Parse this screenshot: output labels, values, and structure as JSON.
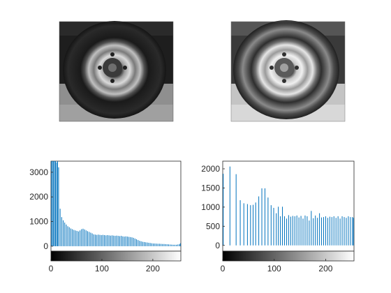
{
  "panels": {
    "original_image": {
      "caption": ""
    },
    "equalized_image": {
      "caption": ""
    }
  },
  "colors": {
    "bar": "#0072BD",
    "axes": "#262626",
    "background": "#FFFFFF"
  },
  "chart_data": [
    {
      "type": "bar",
      "name": "",
      "title": "",
      "xlabel": "",
      "ylabel": "",
      "xlim": [
        0,
        255
      ],
      "ylim": [
        -200,
        3450
      ],
      "xticks": [
        0,
        100,
        200
      ],
      "yticks": [
        0,
        1000,
        2000,
        3000
      ],
      "colorbar": "gray 0-255",
      "grid": false,
      "bars": [
        {
          "x": 1,
          "y": 3450
        },
        {
          "x": 3,
          "y": 3450
        },
        {
          "x": 5,
          "y": 3450
        },
        {
          "x": 7,
          "y": 3450
        },
        {
          "x": 9,
          "y": 3450
        },
        {
          "x": 11,
          "y": 3400
        },
        {
          "x": 13,
          "y": 3450
        },
        {
          "x": 15,
          "y": 3200
        },
        {
          "x": 18,
          "y": 1520
        },
        {
          "x": 21,
          "y": 1180
        },
        {
          "x": 24,
          "y": 1050
        },
        {
          "x": 27,
          "y": 960
        },
        {
          "x": 30,
          "y": 880
        },
        {
          "x": 33,
          "y": 810
        },
        {
          "x": 36,
          "y": 770
        },
        {
          "x": 39,
          "y": 720
        },
        {
          "x": 42,
          "y": 690
        },
        {
          "x": 45,
          "y": 660
        },
        {
          "x": 48,
          "y": 640
        },
        {
          "x": 51,
          "y": 620
        },
        {
          "x": 54,
          "y": 600
        },
        {
          "x": 57,
          "y": 640
        },
        {
          "x": 60,
          "y": 690
        },
        {
          "x": 63,
          "y": 710
        },
        {
          "x": 66,
          "y": 680
        },
        {
          "x": 69,
          "y": 640
        },
        {
          "x": 72,
          "y": 610
        },
        {
          "x": 75,
          "y": 580
        },
        {
          "x": 78,
          "y": 550
        },
        {
          "x": 81,
          "y": 520
        },
        {
          "x": 84,
          "y": 480
        },
        {
          "x": 87,
          "y": 470
        },
        {
          "x": 90,
          "y": 460
        },
        {
          "x": 93,
          "y": 470
        },
        {
          "x": 96,
          "y": 460
        },
        {
          "x": 99,
          "y": 450
        },
        {
          "x": 102,
          "y": 460
        },
        {
          "x": 105,
          "y": 450
        },
        {
          "x": 108,
          "y": 440
        },
        {
          "x": 111,
          "y": 450
        },
        {
          "x": 114,
          "y": 440
        },
        {
          "x": 117,
          "y": 430
        },
        {
          "x": 120,
          "y": 440
        },
        {
          "x": 123,
          "y": 430
        },
        {
          "x": 126,
          "y": 420
        },
        {
          "x": 129,
          "y": 430
        },
        {
          "x": 132,
          "y": 420
        },
        {
          "x": 135,
          "y": 410
        },
        {
          "x": 138,
          "y": 420
        },
        {
          "x": 141,
          "y": 400
        },
        {
          "x": 144,
          "y": 390
        },
        {
          "x": 147,
          "y": 400
        },
        {
          "x": 150,
          "y": 390
        },
        {
          "x": 153,
          "y": 380
        },
        {
          "x": 156,
          "y": 370
        },
        {
          "x": 159,
          "y": 360
        },
        {
          "x": 162,
          "y": 340
        },
        {
          "x": 165,
          "y": 310
        },
        {
          "x": 168,
          "y": 280
        },
        {
          "x": 171,
          "y": 250
        },
        {
          "x": 174,
          "y": 220
        },
        {
          "x": 177,
          "y": 200
        },
        {
          "x": 180,
          "y": 180
        },
        {
          "x": 183,
          "y": 170
        },
        {
          "x": 186,
          "y": 160
        },
        {
          "x": 189,
          "y": 150
        },
        {
          "x": 192,
          "y": 140
        },
        {
          "x": 195,
          "y": 130
        },
        {
          "x": 198,
          "y": 120
        },
        {
          "x": 201,
          "y": 110
        },
        {
          "x": 204,
          "y": 110
        },
        {
          "x": 207,
          "y": 105
        },
        {
          "x": 210,
          "y": 100
        },
        {
          "x": 213,
          "y": 100
        },
        {
          "x": 216,
          "y": 95
        },
        {
          "x": 219,
          "y": 90
        },
        {
          "x": 222,
          "y": 90
        },
        {
          "x": 225,
          "y": 85
        },
        {
          "x": 228,
          "y": 80
        },
        {
          "x": 231,
          "y": 75
        },
        {
          "x": 234,
          "y": 70
        },
        {
          "x": 237,
          "y": 65
        },
        {
          "x": 240,
          "y": 60
        },
        {
          "x": 243,
          "y": 60
        },
        {
          "x": 246,
          "y": 60
        },
        {
          "x": 249,
          "y": 70
        },
        {
          "x": 252,
          "y": 80
        },
        {
          "x": 254,
          "y": 120
        }
      ]
    },
    {
      "type": "bar",
      "name": "",
      "title": "",
      "xlabel": "",
      "ylabel": "",
      "xlim": [
        0,
        255
      ],
      "ylim": [
        -150,
        2200
      ],
      "xticks": [
        0,
        100,
        200
      ],
      "yticks": [
        0,
        500,
        1000,
        1500,
        2000
      ],
      "colorbar": "gray 0-255",
      "grid": false,
      "bars": [
        {
          "x": 1,
          "y": 1870
        },
        {
          "x": 14,
          "y": 2060
        },
        {
          "x": 26,
          "y": 1860
        },
        {
          "x": 34,
          "y": 1180
        },
        {
          "x": 41,
          "y": 1100
        },
        {
          "x": 48,
          "y": 1080
        },
        {
          "x": 54,
          "y": 1050
        },
        {
          "x": 59,
          "y": 1060
        },
        {
          "x": 64,
          "y": 1120
        },
        {
          "x": 70,
          "y": 1280
        },
        {
          "x": 76,
          "y": 1490
        },
        {
          "x": 82,
          "y": 1490
        },
        {
          "x": 88,
          "y": 1250
        },
        {
          "x": 94,
          "y": 1050
        },
        {
          "x": 99,
          "y": 980
        },
        {
          "x": 104,
          "y": 840
        },
        {
          "x": 108,
          "y": 1010
        },
        {
          "x": 112,
          "y": 760
        },
        {
          "x": 116,
          "y": 1010
        },
        {
          "x": 120,
          "y": 760
        },
        {
          "x": 124,
          "y": 700
        },
        {
          "x": 128,
          "y": 790
        },
        {
          "x": 132,
          "y": 750
        },
        {
          "x": 136,
          "y": 770
        },
        {
          "x": 140,
          "y": 760
        },
        {
          "x": 144,
          "y": 780
        },
        {
          "x": 148,
          "y": 730
        },
        {
          "x": 152,
          "y": 770
        },
        {
          "x": 156,
          "y": 700
        },
        {
          "x": 160,
          "y": 780
        },
        {
          "x": 164,
          "y": 760
        },
        {
          "x": 168,
          "y": 650
        },
        {
          "x": 172,
          "y": 900
        },
        {
          "x": 176,
          "y": 710
        },
        {
          "x": 180,
          "y": 780
        },
        {
          "x": 184,
          "y": 720
        },
        {
          "x": 188,
          "y": 840
        },
        {
          "x": 192,
          "y": 730
        },
        {
          "x": 196,
          "y": 740
        },
        {
          "x": 200,
          "y": 760
        },
        {
          "x": 204,
          "y": 720
        },
        {
          "x": 208,
          "y": 750
        },
        {
          "x": 212,
          "y": 740
        },
        {
          "x": 216,
          "y": 760
        },
        {
          "x": 220,
          "y": 720
        },
        {
          "x": 224,
          "y": 760
        },
        {
          "x": 228,
          "y": 700
        },
        {
          "x": 232,
          "y": 760
        },
        {
          "x": 236,
          "y": 740
        },
        {
          "x": 240,
          "y": 720
        },
        {
          "x": 244,
          "y": 760
        },
        {
          "x": 248,
          "y": 740
        },
        {
          "x": 252,
          "y": 740
        },
        {
          "x": 254,
          "y": 720
        }
      ]
    }
  ]
}
